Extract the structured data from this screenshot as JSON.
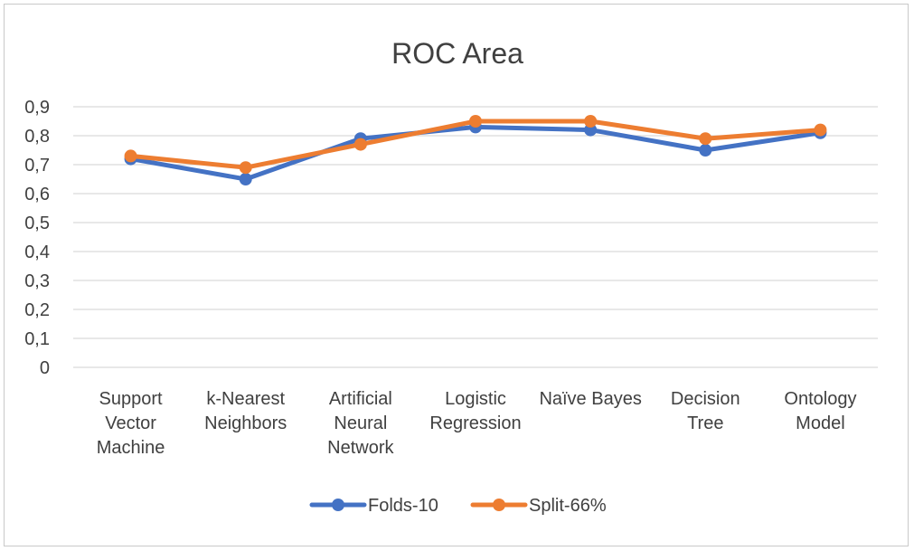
{
  "chart_data": {
    "type": "line",
    "title": "ROC Area",
    "categories": [
      "Support Vector Machine",
      "k-Nearest Neighbors",
      "Artificial Neural Network",
      "Logistic Regression",
      "Naïve Bayes",
      "Decision Tree",
      "Ontology Model"
    ],
    "category_lines": [
      [
        "Support",
        "Vector",
        "Machine"
      ],
      [
        "k-Nearest",
        "Neighbors"
      ],
      [
        "Artificial",
        "Neural",
        "Network"
      ],
      [
        "Logistic",
        "Regression"
      ],
      [
        "Naïve Bayes"
      ],
      [
        "Decision",
        "Tree"
      ],
      [
        "Ontology",
        "Model"
      ]
    ],
    "series": [
      {
        "name": "Folds-10",
        "color": "#4472C4",
        "values": [
          0.72,
          0.65,
          0.79,
          0.83,
          0.82,
          0.75,
          0.81
        ]
      },
      {
        "name": "Split-66%",
        "color": "#ED7D31",
        "values": [
          0.73,
          0.69,
          0.77,
          0.85,
          0.85,
          0.79,
          0.82
        ]
      }
    ],
    "ylim": [
      0,
      0.9
    ],
    "yticks": [
      "0",
      "0,1",
      "0,2",
      "0,3",
      "0,4",
      "0,5",
      "0,6",
      "0,7",
      "0,8",
      "0,9"
    ],
    "xlabel": "",
    "ylabel": "",
    "grid": true,
    "legend_position": "bottom",
    "gridline_color": "#d9d9d9",
    "text_color": "#404040"
  }
}
